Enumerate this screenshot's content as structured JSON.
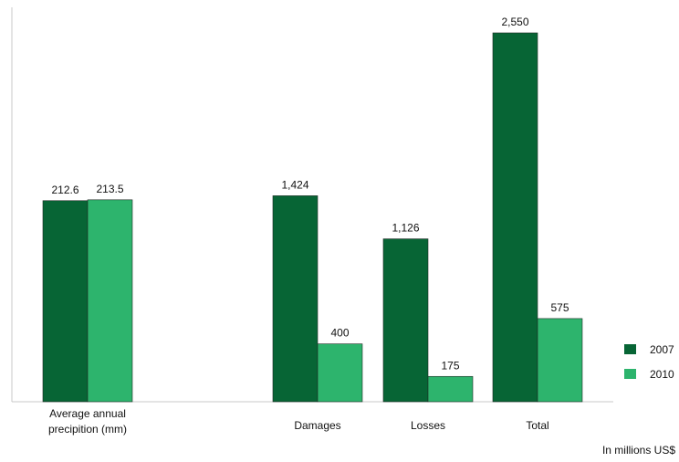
{
  "chart_data": {
    "type": "bar",
    "categories": [
      "Average annual precipition (mm)",
      "Damages",
      "Losses",
      "Total"
    ],
    "category_lines": [
      [
        "Average annual",
        "precipition (mm)"
      ],
      [
        "Damages"
      ],
      [
        "Losses"
      ],
      [
        "Total"
      ]
    ],
    "series": [
      {
        "name": "2007",
        "color": "#076535",
        "values": [
          212.6,
          1424,
          1126,
          2550
        ],
        "labels": [
          "212.6",
          "1,424",
          "1,126",
          "2,550"
        ]
      },
      {
        "name": "2010",
        "color": "#2db46d",
        "values": [
          213.5,
          400,
          175,
          575
        ],
        "labels": [
          "213.5",
          "400",
          "175",
          "575"
        ]
      }
    ],
    "legend_position": "right",
    "note": "In millions US$",
    "ylim": [
      0,
      2550
    ],
    "ylim_precipitation": [
      0,
      390
    ],
    "grid": false
  }
}
